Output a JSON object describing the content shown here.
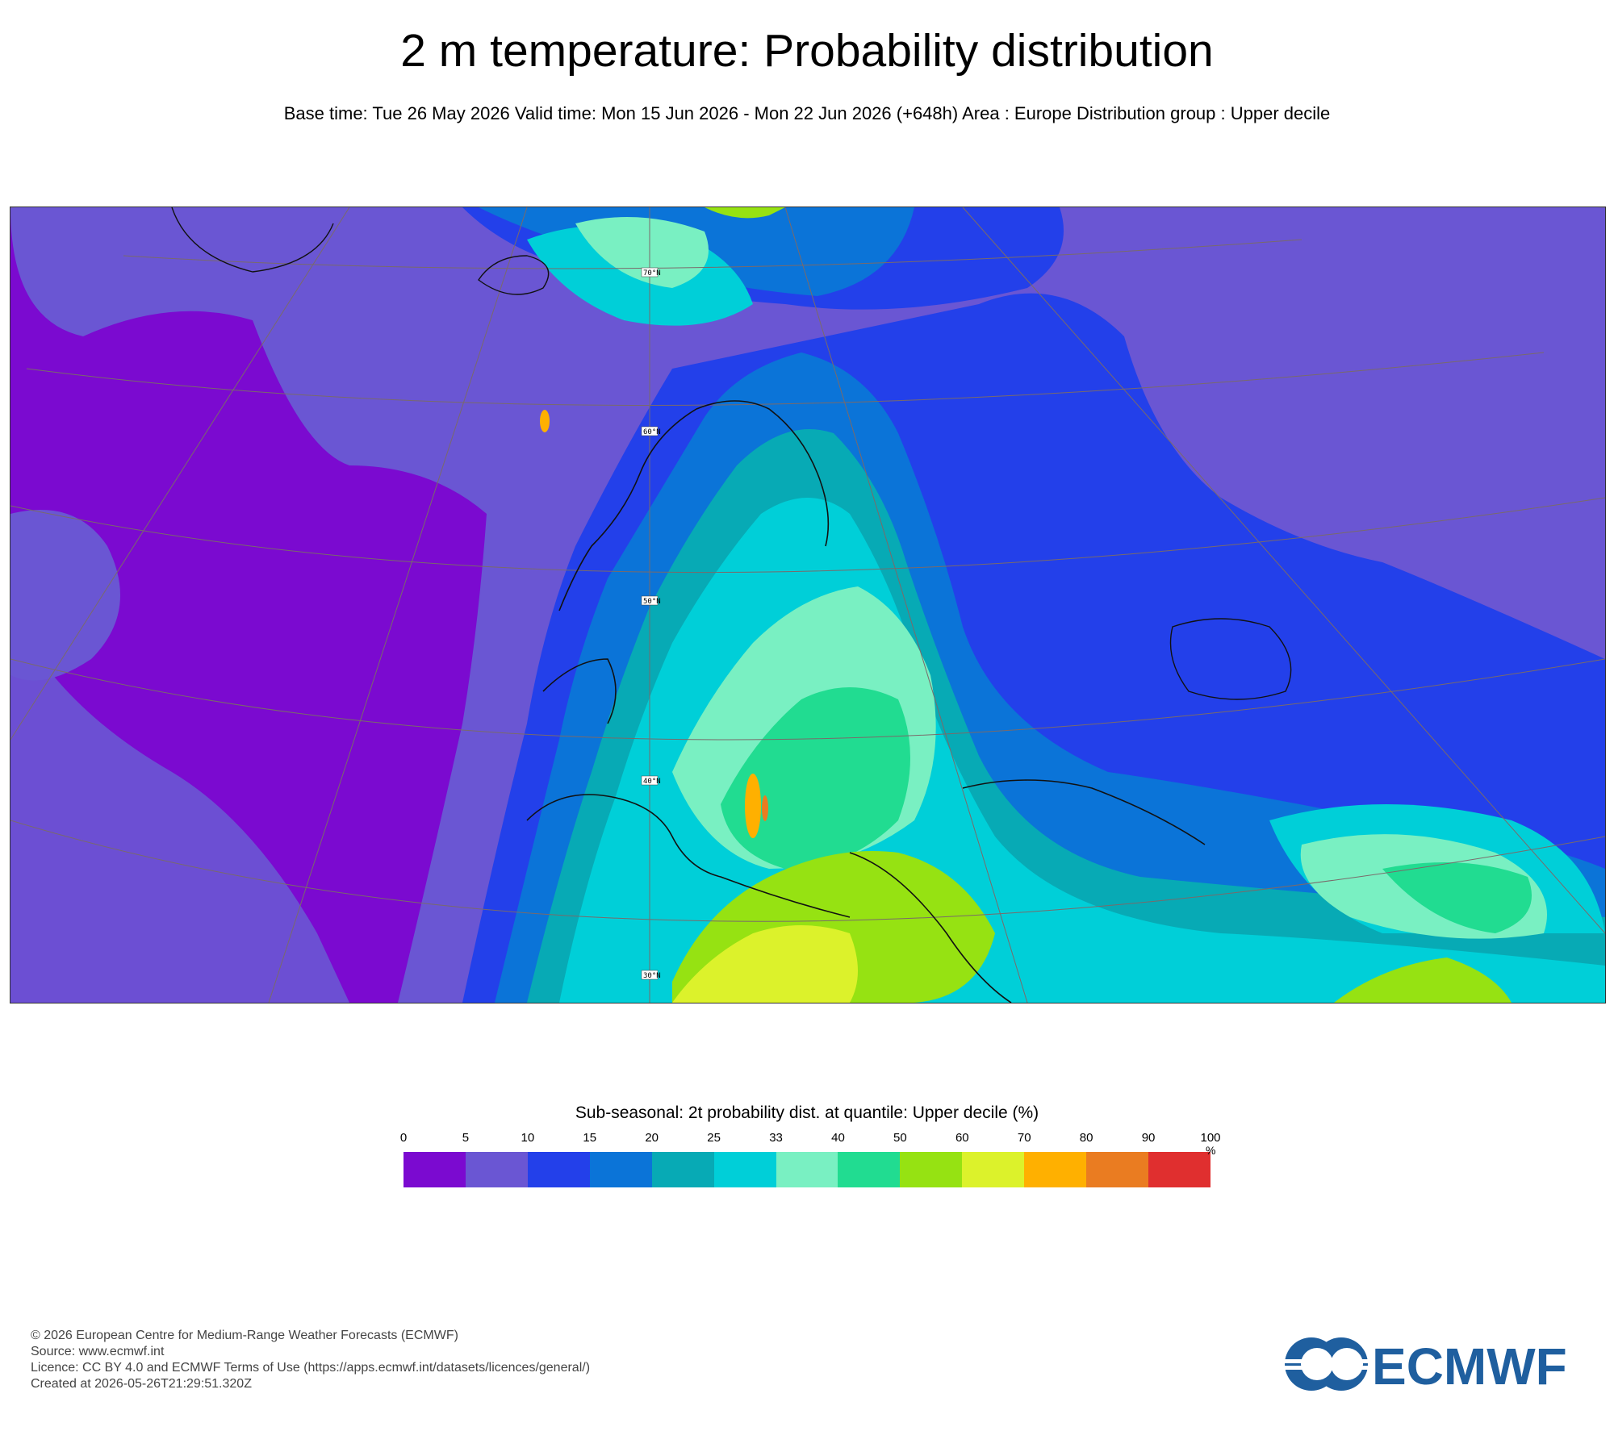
{
  "header": {
    "title": "2 m temperature: Probability distribution",
    "subtitle": "Base time: Tue 26 May 2026 Valid time: Mon 15 Jun 2026 - Mon 22 Jun 2026 (+648h) Area : Europe Distribution group : Upper decile"
  },
  "map": {
    "region": "Europe",
    "lat_labels": [
      "70°N",
      "60°N",
      "50°N",
      "40°N",
      "30°N"
    ]
  },
  "legend": {
    "title": "Sub-seasonal: 2t probability dist. at quantile: Upper decile (%)",
    "ticks": [
      "0",
      "5",
      "10",
      "15",
      "20",
      "25",
      "33",
      "40",
      "50",
      "60",
      "70",
      "80",
      "90",
      "100"
    ],
    "unit": "%",
    "colors": [
      "#7b0ad0",
      "#6a56d3",
      "#2340ea",
      "#0b74d8",
      "#07aab5",
      "#00cfd8",
      "#79f0c2",
      "#21dc91",
      "#96e212",
      "#dcf22b",
      "#ffb000",
      "#ea7c21",
      "#e02f2f"
    ]
  },
  "footer": {
    "copyright": "© 2026 European Centre for Medium-Range Weather Forecasts (ECMWF)",
    "source": "Source: www.ecmwf.int",
    "licence": "Licence: CC BY 4.0 and ECMWF Terms of Use (https://apps.ecmwf.int/datasets/licences/general/)",
    "created": "Created at 2026-05-26T21:29:51.320Z"
  },
  "logo": {
    "text": "ECMWF",
    "color": "#1f5f9f"
  }
}
